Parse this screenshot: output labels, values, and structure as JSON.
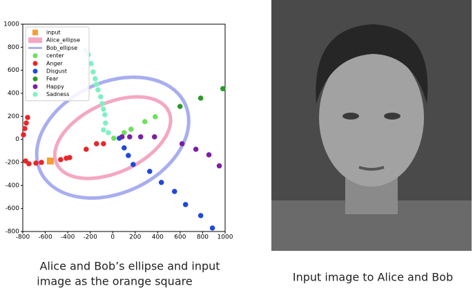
{
  "chart_data": {
    "type": "scatter",
    "xlim": [
      -800,
      1000
    ],
    "ylim": [
      -800,
      1000
    ],
    "xticks": [
      -800,
      -600,
      -400,
      -200,
      0,
      200,
      400,
      600,
      800,
      1000
    ],
    "yticks": [
      -800,
      -600,
      -400,
      -200,
      0,
      200,
      400,
      600,
      800,
      1000
    ],
    "legend": "upper left",
    "ellipses": [
      {
        "name": "Alice_ellipse",
        "color": "#f4a7c3",
        "center": [
          0,
          15
        ],
        "width": 1100,
        "height": 600,
        "angle": 25
      },
      {
        "name": "Bob_ellipse",
        "color": "#a8aef0",
        "center": [
          0,
          15
        ],
        "width": 1420,
        "height": 960,
        "angle": 25
      }
    ],
    "series": [
      {
        "name": "input",
        "color": "#f5a030",
        "marker": "square",
        "x": [
          -555
        ],
        "y": [
          -188
        ]
      },
      {
        "name": "center",
        "color": "#6fe05c",
        "marker": "circle",
        "x": [
          10,
          102,
          163,
          286,
          378
        ],
        "y": [
          10,
          58,
          88,
          154,
          196
        ]
      },
      {
        "name": "Anger",
        "color": "#e8262a",
        "marker": "circle",
        "x": [
          -782,
          -769,
          -757,
          -794,
          -775,
          -745,
          -683,
          -634,
          -463,
          -413,
          -383,
          -236,
          -144,
          -82
        ],
        "y": [
          94,
          142,
          190,
          40,
          -188,
          -212,
          -206,
          -200,
          -176,
          -164,
          -158,
          -86,
          -38,
          -38
        ]
      },
      {
        "name": "Disgust",
        "color": "#1f49d8",
        "marker": "circle",
        "x": [
          59,
          102,
          139,
          182,
          329,
          433,
          550,
          648,
          783,
          887
        ],
        "y": [
          10,
          -74,
          -140,
          -218,
          -278,
          -374,
          -452,
          -566,
          -662,
          -770
        ]
      },
      {
        "name": "Fear",
        "color": "#2a9a2a",
        "marker": "circle",
        "x": [
          599,
          783,
          980
        ],
        "y": [
          286,
          358,
          440
        ]
      },
      {
        "name": "Happy",
        "color": "#7b1fa2",
        "marker": "circle",
        "x": [
          83,
          151,
          249,
          372,
          617,
          740,
          856,
          948
        ],
        "y": [
          22,
          22,
          22,
          22,
          -38,
          -86,
          -134,
          -230
        ]
      },
      {
        "name": "Sadness",
        "color": "#80f0c4",
        "marker": "circle",
        "x": [
          -242,
          -217,
          -193,
          -174,
          -156,
          -144,
          -131,
          -107,
          -94,
          -82,
          -70,
          -64,
          -82,
          -39
        ],
        "y": [
          772,
          736,
          658,
          586,
          526,
          478,
          430,
          370,
          310,
          262,
          214,
          142,
          82,
          58
        ]
      }
    ]
  },
  "captions": [
    {
      "lines": [
        "Alice and Bob’s ellipse and input",
        "image as the orange square"
      ]
    },
    {
      "lines": [
        "Input image to Alice and Bob"
      ]
    }
  ]
}
